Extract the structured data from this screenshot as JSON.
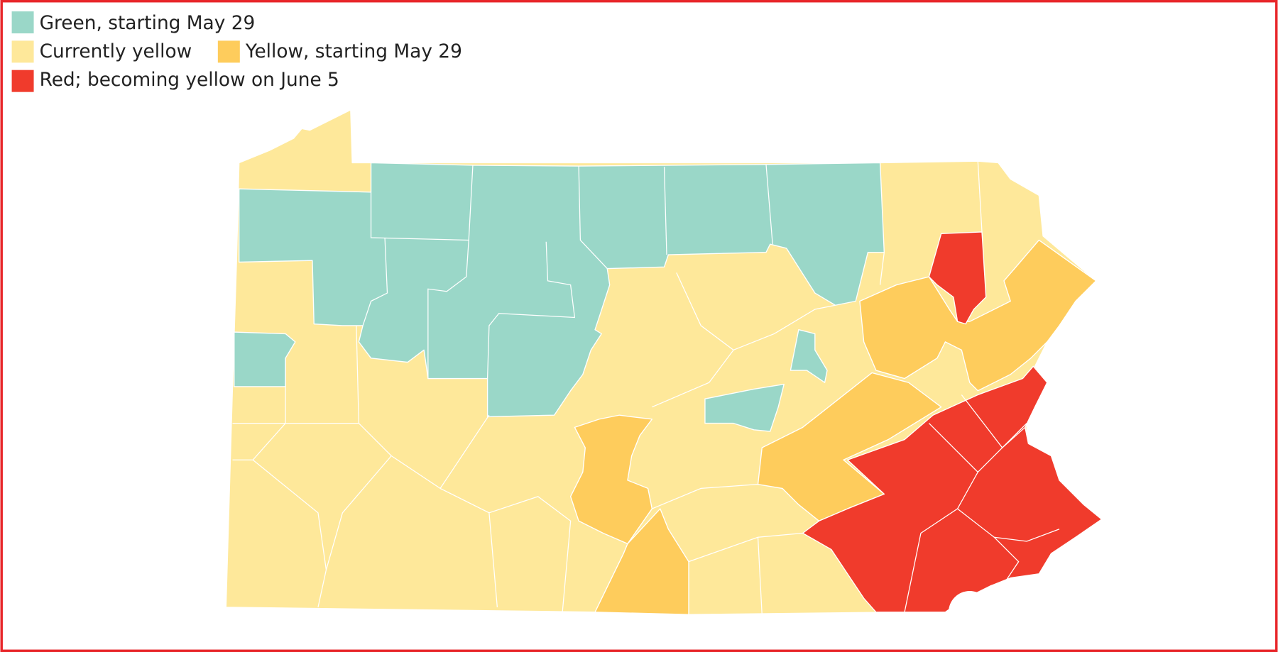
{
  "legend": [
    {
      "label": "Green, starting May 29",
      "color": "#9ad7c8"
    },
    {
      "label": "Currently yellow",
      "color": "#fee89a"
    },
    {
      "label": "Yellow, starting May 29",
      "color": "#fecc5c"
    },
    {
      "label": "Red; becoming yellow on June 5",
      "color": "#f03b2c"
    }
  ]
}
